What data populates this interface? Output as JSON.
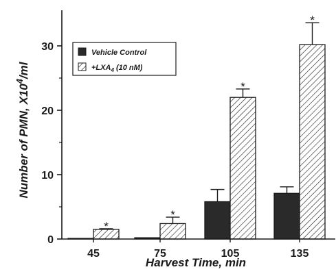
{
  "chart_data": {
    "type": "bar",
    "categories": [
      "45",
      "75",
      "105",
      "135"
    ],
    "series": [
      {
        "name": "Vehicle Control",
        "values": [
          0.1,
          0.2,
          5.8,
          7.1
        ],
        "errors": [
          0,
          0,
          1.9,
          1.0
        ],
        "significant": [
          false,
          false,
          false,
          false
        ],
        "color": "#2a2a2a",
        "pattern": "solid"
      },
      {
        "name": "+LXA4 (10 nM)",
        "values": [
          1.5,
          2.4,
          22.0,
          30.2
        ],
        "errors": [
          0.1,
          1.0,
          1.3,
          3.4
        ],
        "significant": [
          true,
          true,
          true,
          true
        ],
        "color": "#1a1a1a",
        "pattern": "hatched"
      }
    ],
    "significance_marker": "*",
    "xlabel": "Harvest Time, min",
    "ylabel": "Number of PMN, X10",
    "ylabel_exponent": "4",
    "ylabel_unit": "/ml",
    "ylim": [
      0,
      35
    ],
    "yticks": [
      0,
      10,
      20,
      30
    ],
    "legend": {
      "placement": "top-left",
      "entries": [
        {
          "label": "Vehicle Control",
          "pattern": "solid"
        },
        {
          "label_main": "+LXA",
          "label_sub": "4",
          "label_rest": "  (10 nM)",
          "pattern": "hatched"
        }
      ]
    },
    "grid": false
  }
}
